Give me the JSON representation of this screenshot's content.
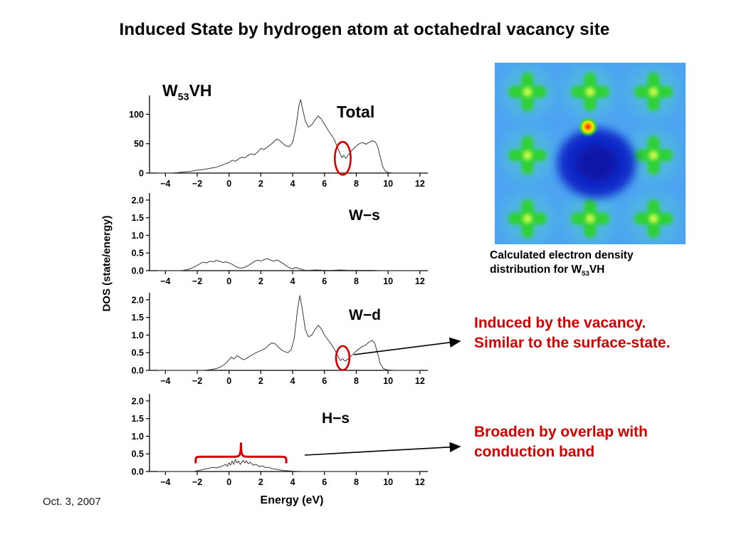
{
  "slide": {
    "title": "Induced State by hydrogen atom at octahedral vacancy site",
    "date": "Oct. 3, 2007"
  },
  "system_label": {
    "element": "W",
    "subscript": "53",
    "suffix": "VH"
  },
  "axis": {
    "ylabel": "DOS (state/energy)",
    "xlabel": "Energy (eV)"
  },
  "density_map": {
    "caption_prefix": "Calculated electron density distribution for W",
    "caption_sub": "53",
    "caption_suffix": "VH",
    "base_color": "#4da3f2",
    "atom_color": "#2fd135",
    "halo_color": "#55e0c0",
    "core_color": "#c9f84a",
    "vacancy_color": "#0a28c8",
    "vacancy_core_color": "#0718a8",
    "hydrogen_color": "#ff1e00"
  },
  "annotations": {
    "induced": "Induced by the vacancy. Similar to the surface-state.",
    "broaden": "Broaden by overlap with conduction band",
    "accent_color": "#d40000"
  },
  "chart_data": [
    {
      "name": "total",
      "type": "line",
      "label": "Total",
      "xlim": [
        -5,
        12.5
      ],
      "ylim": [
        0,
        132
      ],
      "x_ticks": [
        -4,
        -2,
        0,
        2,
        4,
        6,
        8,
        10,
        12
      ],
      "y_ticks": [
        "0",
        "50",
        "100"
      ],
      "points": [
        [
          -4.5,
          0
        ],
        [
          -3.6,
          0
        ],
        [
          -3.2,
          1
        ],
        [
          -2.8,
          2
        ],
        [
          -2.4,
          3
        ],
        [
          -2,
          5
        ],
        [
          -1.6,
          6
        ],
        [
          -1.2,
          8
        ],
        [
          -0.8,
          10
        ],
        [
          -0.5,
          13
        ],
        [
          -0.2,
          16
        ],
        [
          0,
          18
        ],
        [
          0.2,
          22
        ],
        [
          0.4,
          20
        ],
        [
          0.6,
          24
        ],
        [
          0.8,
          27
        ],
        [
          1,
          26
        ],
        [
          1.2,
          30
        ],
        [
          1.4,
          33
        ],
        [
          1.6,
          31
        ],
        [
          1.8,
          36
        ],
        [
          2,
          42
        ],
        [
          2.2,
          40
        ],
        [
          2.4,
          44
        ],
        [
          2.6,
          48
        ],
        [
          2.8,
          53
        ],
        [
          3,
          58
        ],
        [
          3.2,
          55
        ],
        [
          3.4,
          50
        ],
        [
          3.6,
          46
        ],
        [
          3.8,
          45
        ],
        [
          4,
          52
        ],
        [
          4.2,
          78
        ],
        [
          4.4,
          115
        ],
        [
          4.5,
          125
        ],
        [
          4.6,
          112
        ],
        [
          4.8,
          88
        ],
        [
          5,
          78
        ],
        [
          5.2,
          82
        ],
        [
          5.4,
          90
        ],
        [
          5.6,
          97
        ],
        [
          5.8,
          92
        ],
        [
          6,
          83
        ],
        [
          6.2,
          74
        ],
        [
          6.4,
          66
        ],
        [
          6.6,
          58
        ],
        [
          6.8,
          45
        ],
        [
          7,
          32
        ],
        [
          7.1,
          26
        ],
        [
          7.2,
          30
        ],
        [
          7.35,
          25
        ],
        [
          7.5,
          31
        ],
        [
          7.7,
          38
        ],
        [
          8,
          46
        ],
        [
          8.2,
          50
        ],
        [
          8.4,
          52
        ],
        [
          8.6,
          49
        ],
        [
          8.8,
          52
        ],
        [
          9,
          55
        ],
        [
          9.2,
          53
        ],
        [
          9.35,
          45
        ],
        [
          9.5,
          28
        ],
        [
          9.65,
          12
        ],
        [
          9.8,
          4
        ],
        [
          10,
          1
        ],
        [
          10.3,
          0
        ],
        [
          12,
          0
        ]
      ],
      "annotation": {
        "type": "ellipse",
        "cx": 7.15,
        "cy": 25,
        "rx": 0.5,
        "ry": 28
      }
    },
    {
      "name": "w_s",
      "type": "line",
      "label": "W−s",
      "xlim": [
        -5,
        12.5
      ],
      "ylim": [
        0,
        2.2
      ],
      "x_ticks": [
        -4,
        -2,
        0,
        2,
        4,
        6,
        8,
        10,
        12
      ],
      "y_ticks": [
        "0.0",
        "0.5",
        "1.0",
        "1.5",
        "2.0"
      ],
      "points": [
        [
          -4.5,
          0
        ],
        [
          -3,
          0
        ],
        [
          -2.6,
          0.03
        ],
        [
          -2.3,
          0.08
        ],
        [
          -2,
          0.15
        ],
        [
          -1.8,
          0.2
        ],
        [
          -1.6,
          0.24
        ],
        [
          -1.4,
          0.22
        ],
        [
          -1.2,
          0.27
        ],
        [
          -1,
          0.25
        ],
        [
          -0.8,
          0.29
        ],
        [
          -0.6,
          0.27
        ],
        [
          -0.4,
          0.23
        ],
        [
          -0.2,
          0.25
        ],
        [
          0,
          0.22
        ],
        [
          0.2,
          0.18
        ],
        [
          0.4,
          0.12
        ],
        [
          0.6,
          0.08
        ],
        [
          0.8,
          0.07
        ],
        [
          1,
          0.1
        ],
        [
          1.2,
          0.14
        ],
        [
          1.4,
          0.2
        ],
        [
          1.6,
          0.26
        ],
        [
          1.8,
          0.3
        ],
        [
          2,
          0.27
        ],
        [
          2.2,
          0.31
        ],
        [
          2.4,
          0.34
        ],
        [
          2.6,
          0.3
        ],
        [
          2.8,
          0.27
        ],
        [
          3,
          0.3
        ],
        [
          3.2,
          0.26
        ],
        [
          3.4,
          0.2
        ],
        [
          3.6,
          0.14
        ],
        [
          3.8,
          0.08
        ],
        [
          4,
          0.05
        ],
        [
          4.2,
          0.09
        ],
        [
          4.4,
          0.06
        ],
        [
          4.6,
          0.03
        ],
        [
          4.8,
          0.01
        ],
        [
          5,
          0.01
        ],
        [
          5.5,
          0.02
        ],
        [
          6,
          0.01
        ],
        [
          6.5,
          0.01
        ],
        [
          7,
          0.02
        ],
        [
          7.5,
          0.01
        ],
        [
          8,
          0.01
        ],
        [
          9,
          0.01
        ],
        [
          9.5,
          0
        ],
        [
          10,
          0
        ],
        [
          12,
          0
        ]
      ]
    },
    {
      "name": "w_d",
      "type": "line",
      "label": "W−d",
      "xlim": [
        -5,
        12.5
      ],
      "ylim": [
        0,
        2.2
      ],
      "x_ticks": [
        -4,
        -2,
        0,
        2,
        4,
        6,
        8,
        10,
        12
      ],
      "y_ticks": [
        "0.0",
        "0.5",
        "1.0",
        "1.5",
        "2.0"
      ],
      "points": [
        [
          -4.5,
          0
        ],
        [
          -1.6,
          0
        ],
        [
          -1.2,
          0.02
        ],
        [
          -0.8,
          0.05
        ],
        [
          -0.5,
          0.1
        ],
        [
          -0.2,
          0.2
        ],
        [
          0,
          0.3
        ],
        [
          0.15,
          0.38
        ],
        [
          0.3,
          0.32
        ],
        [
          0.5,
          0.42
        ],
        [
          0.7,
          0.36
        ],
        [
          0.9,
          0.3
        ],
        [
          1.1,
          0.34
        ],
        [
          1.3,
          0.4
        ],
        [
          1.5,
          0.45
        ],
        [
          1.7,
          0.5
        ],
        [
          1.9,
          0.54
        ],
        [
          2.1,
          0.58
        ],
        [
          2.3,
          0.63
        ],
        [
          2.5,
          0.72
        ],
        [
          2.7,
          0.78
        ],
        [
          2.9,
          0.75
        ],
        [
          3.1,
          0.66
        ],
        [
          3.3,
          0.58
        ],
        [
          3.5,
          0.53
        ],
        [
          3.7,
          0.5
        ],
        [
          3.9,
          0.58
        ],
        [
          4.1,
          0.9
        ],
        [
          4.3,
          1.7
        ],
        [
          4.45,
          2.12
        ],
        [
          4.6,
          1.75
        ],
        [
          4.8,
          1.15
        ],
        [
          5,
          0.95
        ],
        [
          5.2,
          1
        ],
        [
          5.4,
          1.15
        ],
        [
          5.6,
          1.28
        ],
        [
          5.8,
          1.18
        ],
        [
          6,
          1
        ],
        [
          6.2,
          0.88
        ],
        [
          6.4,
          0.76
        ],
        [
          6.6,
          0.62
        ],
        [
          6.8,
          0.45
        ],
        [
          7,
          0.28
        ],
        [
          7.15,
          0.33
        ],
        [
          7.3,
          0.26
        ],
        [
          7.5,
          0.33
        ],
        [
          7.7,
          0.42
        ],
        [
          8,
          0.55
        ],
        [
          8.2,
          0.62
        ],
        [
          8.4,
          0.68
        ],
        [
          8.6,
          0.72
        ],
        [
          8.8,
          0.8
        ],
        [
          9,
          0.85
        ],
        [
          9.15,
          0.78
        ],
        [
          9.3,
          0.55
        ],
        [
          9.5,
          0.2
        ],
        [
          9.7,
          0.05
        ],
        [
          10,
          0.01
        ],
        [
          10.4,
          0
        ],
        [
          12,
          0
        ]
      ],
      "annotation": {
        "type": "ellipse",
        "cx": 7.15,
        "cy": 0.35,
        "rx": 0.42,
        "ry": 0.34
      }
    },
    {
      "name": "h_s",
      "type": "line",
      "label": "H−s",
      "xlim": [
        -5,
        12.5
      ],
      "ylim": [
        0,
        2.2
      ],
      "x_ticks": [
        -4,
        -2,
        0,
        2,
        4,
        6,
        8,
        10,
        12
      ],
      "y_ticks": [
        "0.0",
        "0.5",
        "1.0",
        "1.5",
        "2.0"
      ],
      "points": [
        [
          -4.5,
          0
        ],
        [
          -2.2,
          0
        ],
        [
          -2,
          0.02
        ],
        [
          -1.8,
          0.04
        ],
        [
          -1.6,
          0.06
        ],
        [
          -1.4,
          0.08
        ],
        [
          -1.2,
          0.1
        ],
        [
          -1,
          0.12
        ],
        [
          -0.8,
          0.1
        ],
        [
          -0.6,
          0.13
        ],
        [
          -0.4,
          0.16
        ],
        [
          -0.2,
          0.2
        ],
        [
          -0.1,
          0.15
        ],
        [
          0,
          0.25
        ],
        [
          0.1,
          0.18
        ],
        [
          0.2,
          0.3
        ],
        [
          0.3,
          0.2
        ],
        [
          0.4,
          0.34
        ],
        [
          0.5,
          0.24
        ],
        [
          0.6,
          0.3
        ],
        [
          0.7,
          0.2
        ],
        [
          0.8,
          0.26
        ],
        [
          0.9,
          0.32
        ],
        [
          1,
          0.24
        ],
        [
          1.1,
          0.3
        ],
        [
          1.2,
          0.22
        ],
        [
          1.35,
          0.26
        ],
        [
          1.5,
          0.18
        ],
        [
          1.7,
          0.2
        ],
        [
          1.9,
          0.14
        ],
        [
          2.1,
          0.16
        ],
        [
          2.3,
          0.11
        ],
        [
          2.5,
          0.12
        ],
        [
          2.7,
          0.08
        ],
        [
          2.9,
          0.07
        ],
        [
          3.1,
          0.05
        ],
        [
          3.4,
          0.03
        ],
        [
          3.7,
          0.02
        ],
        [
          4,
          0.01
        ],
        [
          4.5,
          0
        ],
        [
          12,
          0
        ]
      ],
      "annotation": {
        "type": "brace",
        "x1": -2.1,
        "x2": 3.6,
        "y": 0.42,
        "height": 0.4
      }
    }
  ]
}
